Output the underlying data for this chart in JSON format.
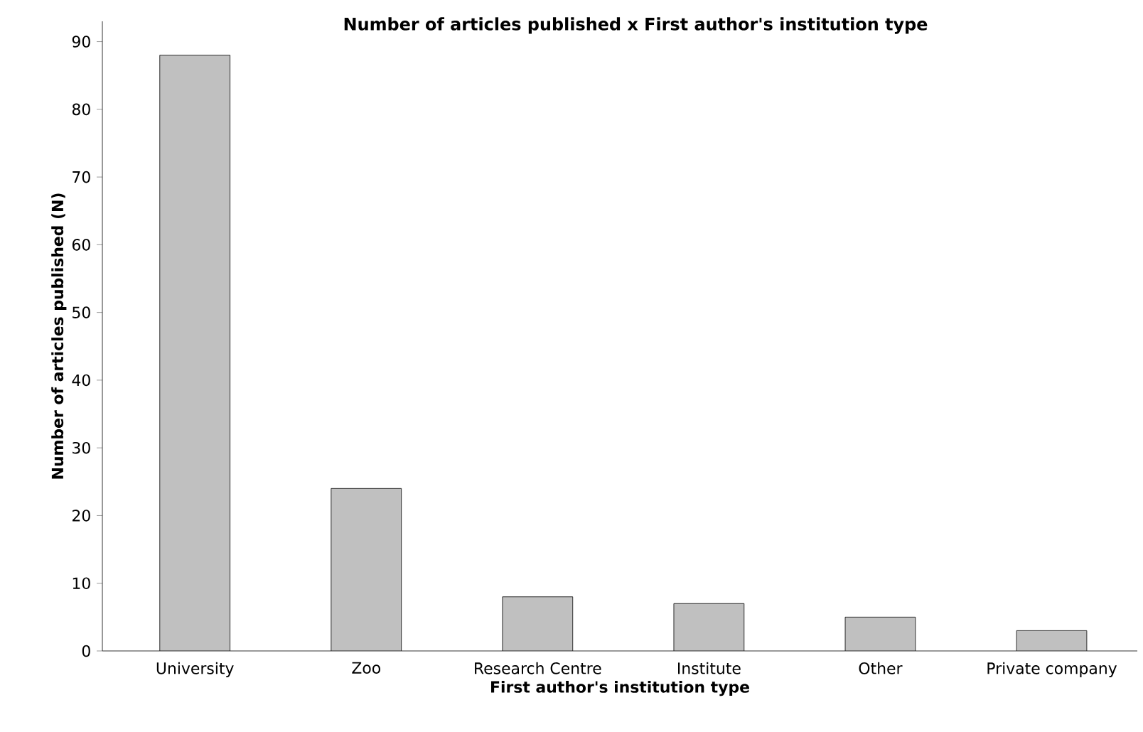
{
  "chart_data": {
    "type": "bar",
    "title": "Number of articles published x First author's institution type",
    "xlabel": "First author's institution type",
    "ylabel": "Number of articles published (N)",
    "categories": [
      "University",
      "Zoo",
      "Research Centre",
      "Institute",
      "Other",
      "Private company"
    ],
    "values": [
      88,
      24,
      8,
      7,
      5,
      3
    ],
    "color": "#c0c0c0",
    "ylim": [
      0,
      93
    ],
    "yticks": [
      0,
      10,
      20,
      30,
      40,
      50,
      60,
      70,
      80,
      90
    ],
    "grid": false
  }
}
